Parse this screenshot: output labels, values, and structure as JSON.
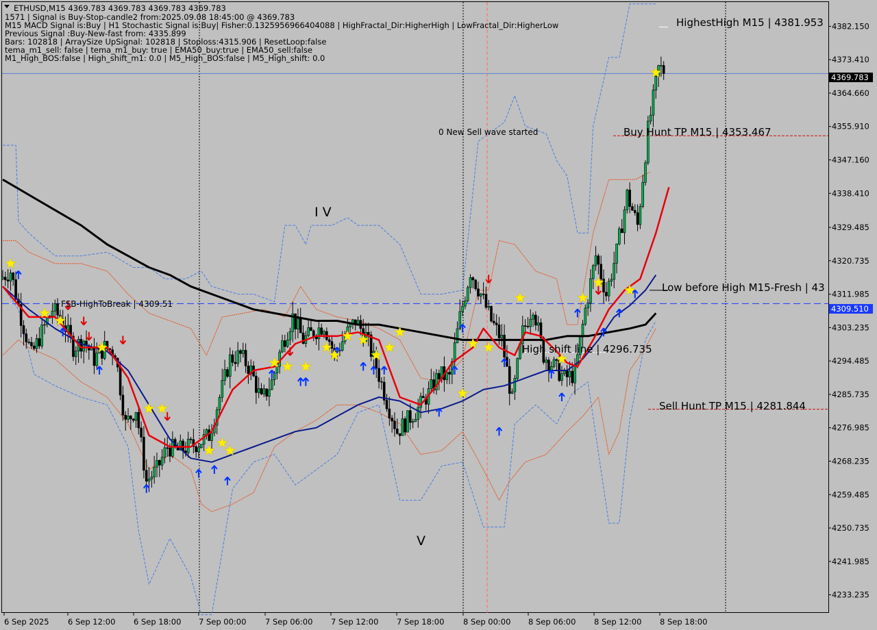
{
  "window": {
    "title": "ETHUSD,M15  4369.783 4369.783 4369.783 4369.783"
  },
  "info_lines": [
    "1571 | Signal is Buy-Stop-candle2 from:2025.09.08 18:45:00 @ 4369.783",
    "M15 MACD Signal is:Buy | H1 Stochastic Signal is:Buy| Fisher:0.1325956966404088 | HighFractal_Dir:HigherHigh | LowFractal_Dir:HigherLow",
    "Previous Signal :Buy-New-fast from: 4335.899",
    "Bars: 102818 | ArraySize UpSignal: 102818 | Stoploss:4315.906 | ResetLoop:false",
    "tema_m1_sell: false | tema_m1_buy: true | EMA50_buy:true | EMA50_sell:false",
    "M1_High_BOS:false | High_shift_m1: 0.0 | M5_High_BOS:false | M5_High_shift: 0.0"
  ],
  "annotations": {
    "highest_high": "HighestHigh    M15 | 4381.953",
    "buy_hunt": "Buy Hunt TP M15 | 4353.467",
    "sell_hunt": "Sell Hunt TP M15 | 4281.844",
    "low_before_high": "Low before High    M15-Fresh | 43",
    "high_shift": "High shift line | 4296.735",
    "fsb": "FSB-HighToBreak | 4309.51",
    "new_sell_wave": "0 New Sell wave started",
    "wave_iv": "I V",
    "wave_v": "V"
  },
  "price_tags": {
    "current": "4369.783",
    "fsb": "4309.510"
  },
  "colors": {
    "background": "#c0c0c0",
    "ema_red": "#e8000b",
    "ema_blue": "#0a1a8c",
    "ema_black": "#000000",
    "band_blue": "#4a7fe0",
    "band_orange": "#e8501a",
    "buy_arrow": "#0032ff",
    "sell_arrow": "#e00000",
    "star": "#ffee00"
  },
  "chart_data": {
    "type": "candlestick",
    "symbol": "ETHUSD",
    "timeframe": "M15",
    "ylim": [
      4228.5,
      4388.5
    ],
    "y_ticks": [
      "4382.150",
      "4373.410",
      "4364.660",
      "4355.910",
      "4347.160",
      "4338.410",
      "4329.485",
      "4320.735",
      "4311.985",
      "4303.235",
      "4294.485",
      "4285.735",
      "4276.985",
      "4268.235",
      "4259.485",
      "4250.735",
      "4241.985",
      "4233.235"
    ],
    "x_ticks": [
      "6 Sep 2025",
      "6 Sep 12:00",
      "6 Sep 18:00",
      "7 Sep 00:00",
      "7 Sep 06:00",
      "7 Sep 12:00",
      "7 Sep 18:00",
      "8 Sep 00:00",
      "8 Sep 06:00",
      "8 Sep 12:00",
      "8 Sep 18:00"
    ],
    "levels": {
      "current_price": 4369.783,
      "highest_high": 4381.953,
      "buy_hunt_tp": 4353.467,
      "sell_hunt_tp": 4281.844,
      "fsb_high_to_break": 4309.51,
      "high_shift": 4296.735
    },
    "price_anchors": [
      [
        0,
        4316
      ],
      [
        4,
        4318
      ],
      [
        8,
        4306
      ],
      [
        12,
        4296
      ],
      [
        16,
        4302
      ],
      [
        20,
        4308
      ],
      [
        24,
        4305
      ],
      [
        28,
        4298
      ],
      [
        32,
        4300
      ],
      [
        36,
        4295
      ],
      [
        40,
        4298
      ],
      [
        44,
        4297
      ],
      [
        48,
        4278
      ],
      [
        52,
        4282
      ],
      [
        56,
        4263
      ],
      [
        60,
        4266
      ],
      [
        64,
        4272
      ],
      [
        68,
        4271
      ],
      [
        72,
        4272
      ],
      [
        76,
        4273
      ],
      [
        80,
        4275
      ],
      [
        84,
        4285
      ],
      [
        88,
        4295
      ],
      [
        92,
        4296
      ],
      [
        96,
        4292
      ],
      [
        100,
        4284
      ],
      [
        104,
        4289
      ],
      [
        108,
        4299
      ],
      [
        112,
        4306
      ],
      [
        116,
        4300
      ],
      [
        120,
        4302
      ],
      [
        124,
        4304
      ],
      [
        128,
        4296
      ],
      [
        132,
        4301
      ],
      [
        136,
        4305
      ],
      [
        140,
        4301
      ],
      [
        144,
        4293
      ],
      [
        148,
        4284
      ],
      [
        152,
        4276
      ],
      [
        156,
        4279
      ],
      [
        160,
        4282
      ],
      [
        164,
        4286
      ],
      [
        168,
        4291
      ],
      [
        172,
        4290
      ],
      [
        176,
        4306
      ],
      [
        180,
        4318
      ],
      [
        184,
        4312
      ],
      [
        188,
        4305
      ],
      [
        192,
        4300
      ],
      [
        196,
        4284
      ],
      [
        200,
        4302
      ],
      [
        204,
        4309
      ],
      [
        208,
        4296
      ],
      [
        212,
        4293
      ],
      [
        216,
        4290
      ],
      [
        220,
        4291
      ],
      [
        224,
        4308
      ],
      [
        228,
        4322
      ],
      [
        232,
        4312
      ],
      [
        236,
        4323
      ],
      [
        240,
        4338
      ],
      [
        244,
        4330
      ],
      [
        248,
        4355
      ],
      [
        252,
        4371
      ]
    ],
    "ema_red": [
      [
        0,
        4314
      ],
      [
        10,
        4306
      ],
      [
        20,
        4306
      ],
      [
        30,
        4298
      ],
      [
        40,
        4298
      ],
      [
        48,
        4290
      ],
      [
        56,
        4275
      ],
      [
        64,
        4272
      ],
      [
        72,
        4272
      ],
      [
        80,
        4276
      ],
      [
        88,
        4287
      ],
      [
        96,
        4292
      ],
      [
        104,
        4293
      ],
      [
        112,
        4299
      ],
      [
        120,
        4301
      ],
      [
        128,
        4301
      ],
      [
        136,
        4302
      ],
      [
        144,
        4300
      ],
      [
        152,
        4285
      ],
      [
        160,
        4283
      ],
      [
        166,
        4288
      ],
      [
        172,
        4294
      ],
      [
        180,
        4298
      ],
      [
        184,
        4303
      ],
      [
        190,
        4298
      ],
      [
        196,
        4296
      ],
      [
        200,
        4302
      ],
      [
        206,
        4301
      ],
      [
        212,
        4297
      ],
      [
        216,
        4294
      ],
      [
        220,
        4293
      ],
      [
        226,
        4300
      ],
      [
        232,
        4308
      ],
      [
        238,
        4313
      ],
      [
        244,
        4316
      ],
      [
        250,
        4328
      ],
      [
        255,
        4340
      ]
    ],
    "ema_blue": [
      [
        0,
        4314
      ],
      [
        10,
        4308
      ],
      [
        20,
        4303
      ],
      [
        30,
        4299
      ],
      [
        40,
        4297
      ],
      [
        48,
        4292
      ],
      [
        56,
        4283
      ],
      [
        64,
        4274
      ],
      [
        72,
        4269
      ],
      [
        80,
        4268
      ],
      [
        88,
        4270
      ],
      [
        96,
        4272
      ],
      [
        104,
        4274
      ],
      [
        112,
        4276
      ],
      [
        120,
        4277
      ],
      [
        128,
        4280
      ],
      [
        136,
        4283
      ],
      [
        144,
        4285
      ],
      [
        152,
        4284
      ],
      [
        160,
        4281
      ],
      [
        168,
        4282
      ],
      [
        176,
        4284
      ],
      [
        184,
        4287
      ],
      [
        192,
        4288
      ],
      [
        200,
        4290
      ],
      [
        208,
        4292
      ],
      [
        216,
        4292
      ],
      [
        222,
        4295
      ],
      [
        228,
        4300
      ],
      [
        234,
        4306
      ],
      [
        240,
        4309
      ],
      [
        246,
        4313
      ],
      [
        250,
        4317
      ]
    ],
    "ema_black": [
      [
        0,
        4342
      ],
      [
        10,
        4338
      ],
      [
        20,
        4334
      ],
      [
        30,
        4330
      ],
      [
        40,
        4325
      ],
      [
        48,
        4322
      ],
      [
        56,
        4319
      ],
      [
        64,
        4317
      ],
      [
        72,
        4314
      ],
      [
        80,
        4312
      ],
      [
        88,
        4310
      ],
      [
        96,
        4308
      ],
      [
        104,
        4307
      ],
      [
        112,
        4306
      ],
      [
        120,
        4305
      ],
      [
        128,
        4305
      ],
      [
        136,
        4304
      ],
      [
        144,
        4304
      ],
      [
        152,
        4303
      ],
      [
        160,
        4302
      ],
      [
        168,
        4301
      ],
      [
        176,
        4300
      ],
      [
        184,
        4300
      ],
      [
        192,
        4300
      ],
      [
        200,
        4300
      ],
      [
        208,
        4300
      ],
      [
        216,
        4301
      ],
      [
        224,
        4301
      ],
      [
        232,
        4302
      ],
      [
        240,
        4303
      ],
      [
        246,
        4304
      ],
      [
        250,
        4307
      ]
    ],
    "band_blue_upper": [
      [
        0,
        4351
      ],
      [
        5,
        4351
      ],
      [
        6,
        4331
      ],
      [
        10,
        4328
      ],
      [
        20,
        4322
      ],
      [
        30,
        4322
      ],
      [
        40,
        4323
      ],
      [
        50,
        4319
      ],
      [
        56,
        4319
      ],
      [
        62,
        4316
      ],
      [
        70,
        4316
      ],
      [
        76,
        4318
      ],
      [
        80,
        4314
      ],
      [
        90,
        4312
      ],
      [
        96,
        4312
      ],
      [
        104,
        4310
      ],
      [
        108,
        4330
      ],
      [
        112,
        4330
      ],
      [
        116,
        4325
      ],
      [
        118,
        4330
      ],
      [
        126,
        4330
      ],
      [
        132,
        4332
      ],
      [
        136,
        4330
      ],
      [
        144,
        4330
      ],
      [
        152,
        4325
      ],
      [
        160,
        4312
      ],
      [
        168,
        4312
      ],
      [
        176,
        4313
      ],
      [
        182,
        4352
      ],
      [
        192,
        4357
      ],
      [
        196,
        4364
      ],
      [
        200,
        4356
      ],
      [
        208,
        4354
      ],
      [
        212,
        4347
      ],
      [
        216,
        4343
      ],
      [
        220,
        4328
      ],
      [
        224,
        4328
      ],
      [
        226,
        4356
      ],
      [
        232,
        4374
      ],
      [
        236,
        4374
      ],
      [
        240,
        4388
      ],
      [
        250,
        4388
      ]
    ],
    "band_blue_lower": [
      [
        0,
        4314
      ],
      [
        6,
        4308
      ],
      [
        12,
        4291
      ],
      [
        20,
        4288
      ],
      [
        30,
        4285
      ],
      [
        40,
        4283
      ],
      [
        48,
        4272
      ],
      [
        52,
        4250
      ],
      [
        56,
        4236
      ],
      [
        64,
        4248
      ],
      [
        72,
        4238
      ],
      [
        76,
        4228
      ],
      [
        80,
        4228
      ],
      [
        88,
        4261
      ],
      [
        96,
        4268
      ],
      [
        104,
        4270
      ],
      [
        112,
        4262
      ],
      [
        120,
        4266
      ],
      [
        128,
        4270
      ],
      [
        136,
        4281
      ],
      [
        144,
        4283
      ],
      [
        152,
        4258
      ],
      [
        160,
        4258
      ],
      [
        168,
        4267
      ],
      [
        176,
        4268
      ],
      [
        184,
        4251
      ],
      [
        192,
        4251
      ],
      [
        196,
        4278
      ],
      [
        204,
        4283
      ],
      [
        212,
        4278
      ],
      [
        218,
        4286
      ],
      [
        224,
        4289
      ],
      [
        232,
        4252
      ],
      [
        236,
        4252
      ],
      [
        240,
        4279
      ],
      [
        246,
        4300
      ],
      [
        250,
        4305
      ]
    ],
    "band_orange_upper": [
      [
        0,
        4326
      ],
      [
        5,
        4326
      ],
      [
        10,
        4323
      ],
      [
        20,
        4320
      ],
      [
        30,
        4320
      ],
      [
        40,
        4318
      ],
      [
        48,
        4312
      ],
      [
        56,
        4307
      ],
      [
        64,
        4305
      ],
      [
        72,
        4303
      ],
      [
        78,
        4296
      ],
      [
        84,
        4306
      ],
      [
        92,
        4307
      ],
      [
        100,
        4308
      ],
      [
        108,
        4306
      ],
      [
        114,
        4314
      ],
      [
        120,
        4308
      ],
      [
        128,
        4306
      ],
      [
        136,
        4305
      ],
      [
        144,
        4303
      ],
      [
        152,
        4300
      ],
      [
        160,
        4290
      ],
      [
        168,
        4289
      ],
      [
        176,
        4295
      ],
      [
        182,
        4313
      ],
      [
        186,
        4313
      ],
      [
        190,
        4326
      ],
      [
        196,
        4325
      ],
      [
        204,
        4318
      ],
      [
        212,
        4316
      ],
      [
        216,
        4304
      ],
      [
        220,
        4304
      ],
      [
        226,
        4328
      ],
      [
        232,
        4342
      ],
      [
        236,
        4342
      ],
      [
        242,
        4342
      ],
      [
        248,
        4344
      ]
    ],
    "band_orange_lower": [
      [
        0,
        4296
      ],
      [
        6,
        4300
      ],
      [
        10,
        4298
      ],
      [
        20,
        4295
      ],
      [
        30,
        4289
      ],
      [
        40,
        4285
      ],
      [
        48,
        4278
      ],
      [
        56,
        4266
      ],
      [
        64,
        4270
      ],
      [
        72,
        4266
      ],
      [
        76,
        4257
      ],
      [
        80,
        4255
      ],
      [
        88,
        4257
      ],
      [
        96,
        4260
      ],
      [
        104,
        4272
      ],
      [
        112,
        4276
      ],
      [
        120,
        4279
      ],
      [
        128,
        4283
      ],
      [
        136,
        4283
      ],
      [
        144,
        4281
      ],
      [
        152,
        4278
      ],
      [
        160,
        4270
      ],
      [
        168,
        4271
      ],
      [
        176,
        4276
      ],
      [
        184,
        4266
      ],
      [
        190,
        4258
      ],
      [
        194,
        4263
      ],
      [
        200,
        4268
      ],
      [
        208,
        4270
      ],
      [
        216,
        4276
      ],
      [
        222,
        4280
      ],
      [
        228,
        4285
      ],
      [
        232,
        4270
      ],
      [
        236,
        4276
      ],
      [
        240,
        4292
      ],
      [
        246,
        4298
      ],
      [
        250,
        4303
      ]
    ],
    "buy_arrows": [
      [
        6,
        4317
      ],
      [
        23,
        4302
      ],
      [
        37,
        4292
      ],
      [
        55,
        4261
      ],
      [
        75,
        4265
      ],
      [
        81,
        4266
      ],
      [
        86,
        4263
      ],
      [
        103,
        4291
      ],
      [
        114,
        4289
      ],
      [
        116,
        4289
      ],
      [
        128,
        4297
      ],
      [
        138,
        4293
      ],
      [
        142,
        4292
      ],
      [
        146,
        4292
      ],
      [
        167,
        4281
      ],
      [
        173,
        4292
      ],
      [
        176,
        4303
      ],
      [
        190,
        4276
      ],
      [
        192,
        4294
      ],
      [
        210,
        4291
      ],
      [
        214,
        4285
      ],
      [
        220,
        4307
      ],
      [
        230,
        4302
      ],
      [
        236,
        4307
      ],
      [
        242,
        4312
      ]
    ],
    "sell_arrows": [
      [
        25,
        4309
      ],
      [
        31,
        4305
      ],
      [
        33,
        4301
      ],
      [
        46,
        4300
      ],
      [
        63,
        4280
      ],
      [
        110,
        4297
      ],
      [
        186,
        4316
      ],
      [
        228,
        4313
      ]
    ],
    "stars": [
      [
        3,
        4320
      ],
      [
        16,
        4307
      ],
      [
        22,
        4305
      ],
      [
        38,
        4298
      ],
      [
        56,
        4282
      ],
      [
        61,
        4282
      ],
      [
        79,
        4271
      ],
      [
        84,
        4273
      ],
      [
        87,
        4271
      ],
      [
        104,
        4294
      ],
      [
        109,
        4293
      ],
      [
        116,
        4293
      ],
      [
        124,
        4298
      ],
      [
        127,
        4296
      ],
      [
        132,
        4301
      ],
      [
        138,
        4300
      ],
      [
        143,
        4296
      ],
      [
        148,
        4298
      ],
      [
        152,
        4302
      ],
      [
        176,
        4286
      ],
      [
        180,
        4299
      ],
      [
        186,
        4298
      ],
      [
        198,
        4311
      ],
      [
        214,
        4295
      ],
      [
        222,
        4311
      ],
      [
        228,
        4315
      ],
      [
        240,
        4313
      ],
      [
        250,
        4370
      ]
    ]
  }
}
